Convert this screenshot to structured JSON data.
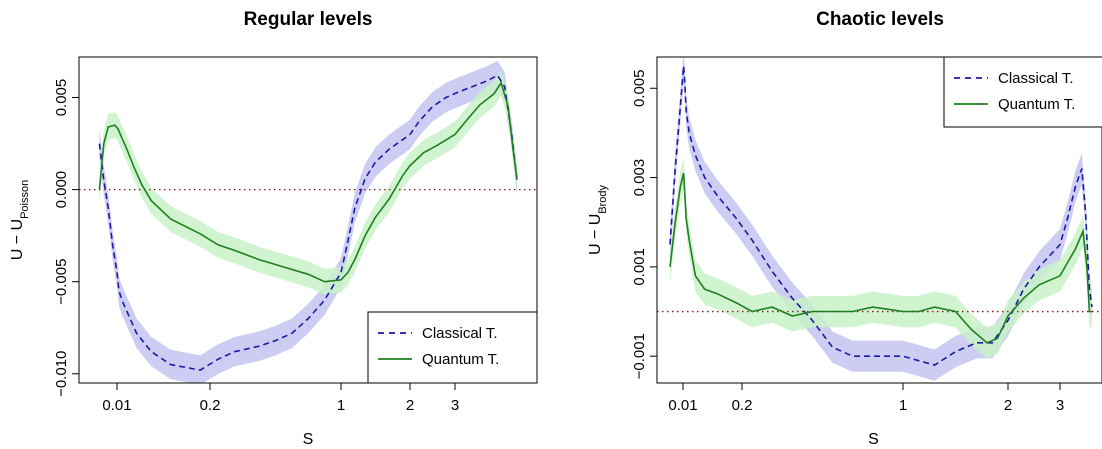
{
  "colors": {
    "classical": "#1a1aa6",
    "classical_band": "#c8c8f3",
    "quantum": "#1f7f1f",
    "quantum_band": "#c8f1c8",
    "reference": "#8b1a1a"
  },
  "chart_data": [
    {
      "type": "line",
      "title": "Regular levels",
      "xlabel": "S",
      "ylabel_main": "U − U",
      "ylabel_sub": "Poisson",
      "x_scale": "custom (nonlinear, as printed ticks)",
      "x_ticks": [
        0.01,
        0.2,
        1,
        2,
        3
      ],
      "x_tick_labels": [
        "0.01",
        "0.2",
        "1",
        "2",
        "3"
      ],
      "y_ticks": [
        -0.01,
        -0.005,
        0.0,
        0.005
      ],
      "y_tick_labels": [
        "−0.010",
        "−0.005",
        "0.000",
        "0.005"
      ],
      "ylim": [
        -0.0105,
        0.0072
      ],
      "reference_line_y": 0.0,
      "legend_position": "bottom-right",
      "series": [
        {
          "name": "Classical T.",
          "style": "dashed",
          "band_halfwidth": 0.0008,
          "points": [
            [
              0.002,
              0.0025
            ],
            [
              0.004,
              0.0005
            ],
            [
              0.006,
              -0.001
            ],
            [
              0.008,
              -0.003
            ],
            [
              0.01,
              -0.0045
            ],
            [
              0.014,
              -0.0055
            ],
            [
              0.02,
              -0.006
            ],
            [
              0.03,
              -0.0066
            ],
            [
              0.05,
              -0.0078
            ],
            [
              0.08,
              -0.0088
            ],
            [
              0.12,
              -0.0095
            ],
            [
              0.18,
              -0.0098
            ],
            [
              0.25,
              -0.0092
            ],
            [
              0.35,
              -0.0088
            ],
            [
              0.5,
              -0.0085
            ],
            [
              0.6,
              -0.0082
            ],
            [
              0.7,
              -0.0078
            ],
            [
              0.8,
              -0.007
            ],
            [
              0.9,
              -0.006
            ],
            [
              1.0,
              -0.0045
            ],
            [
              1.1,
              -0.0028
            ],
            [
              1.2,
              -0.001
            ],
            [
              1.35,
              0.0006
            ],
            [
              1.5,
              0.0015
            ],
            [
              1.7,
              0.0022
            ],
            [
              2.0,
              0.003
            ],
            [
              2.2,
              0.0037
            ],
            [
              2.5,
              0.0045
            ],
            [
              2.8,
              0.005
            ],
            [
              3.1,
              0.0053
            ],
            [
              3.5,
              0.0056
            ],
            [
              3.9,
              0.0059
            ],
            [
              4.2,
              0.0062
            ],
            [
              4.4,
              0.0056
            ],
            [
              4.6,
              0.003
            ],
            [
              4.75,
              0.0005
            ]
          ]
        },
        {
          "name": "Quantum T.",
          "style": "solid",
          "band_halfwidth": 0.0007,
          "points": [
            [
              0.002,
              0.0
            ],
            [
              0.004,
              0.0025
            ],
            [
              0.006,
              0.0034
            ],
            [
              0.009,
              0.0035
            ],
            [
              0.012,
              0.0033
            ],
            [
              0.02,
              0.0028
            ],
            [
              0.03,
              0.0022
            ],
            [
              0.045,
              0.0012
            ],
            [
              0.06,
              0.0003
            ],
            [
              0.08,
              -0.0006
            ],
            [
              0.12,
              -0.0016
            ],
            [
              0.18,
              -0.0024
            ],
            [
              0.25,
              -0.003
            ],
            [
              0.35,
              -0.0033
            ],
            [
              0.5,
              -0.0038
            ],
            [
              0.65,
              -0.0042
            ],
            [
              0.8,
              -0.0046
            ],
            [
              0.9,
              -0.005
            ],
            [
              1.0,
              -0.0049
            ],
            [
              1.1,
              -0.0045
            ],
            [
              1.2,
              -0.0038
            ],
            [
              1.35,
              -0.0025
            ],
            [
              1.5,
              -0.0015
            ],
            [
              1.7,
              -0.0005
            ],
            [
              1.9,
              0.0008
            ],
            [
              2.0,
              0.0013
            ],
            [
              2.3,
              0.002
            ],
            [
              2.6,
              0.0024
            ],
            [
              3.0,
              0.003
            ],
            [
              3.3,
              0.0037
            ],
            [
              3.7,
              0.0046
            ],
            [
              4.1,
              0.0052
            ],
            [
              4.3,
              0.0058
            ],
            [
              4.5,
              0.0045
            ],
            [
              4.65,
              0.002
            ],
            [
              4.75,
              0.0006
            ]
          ]
        }
      ]
    },
    {
      "type": "line",
      "title": "Chaotic levels",
      "xlabel": "S",
      "ylabel_main": "U − U",
      "ylabel_sub": "Brody",
      "x_scale": "custom (nonlinear, as printed ticks)",
      "x_ticks": [
        0.01,
        0.2,
        1,
        2,
        3
      ],
      "x_tick_labels": [
        "0.01",
        "0.2",
        "1",
        "2",
        "3"
      ],
      "y_ticks": [
        -0.001,
        0.001,
        0.003,
        0.005
      ],
      "y_tick_labels": [
        "−0.001",
        "0.001",
        "0.003",
        "0.005"
      ],
      "ylim": [
        -0.0016,
        0.0057
      ],
      "reference_line_y": 0.0,
      "legend_position": "top-right",
      "series": [
        {
          "name": "Classical T.",
          "style": "dashed",
          "band_halfwidth": 0.00035,
          "points": [
            [
              0.0,
              0.0015
            ],
            [
              0.004,
              0.0032
            ],
            [
              0.008,
              0.0046
            ],
            [
              0.012,
              0.0055
            ],
            [
              0.016,
              0.0051
            ],
            [
              0.02,
              0.0045
            ],
            [
              0.03,
              0.004
            ],
            [
              0.05,
              0.0035
            ],
            [
              0.08,
              0.003
            ],
            [
              0.12,
              0.0026
            ],
            [
              0.18,
              0.0021
            ],
            [
              0.25,
              0.0016
            ],
            [
              0.35,
              0.0009
            ],
            [
              0.45,
              0.0003
            ],
            [
              0.55,
              -0.0002
            ],
            [
              0.65,
              -0.0008
            ],
            [
              0.75,
              -0.001
            ],
            [
              0.85,
              -0.001
            ],
            [
              1.0,
              -0.001
            ],
            [
              1.15,
              -0.0011
            ],
            [
              1.3,
              -0.0012
            ],
            [
              1.5,
              -0.0009
            ],
            [
              1.7,
              -0.0007
            ],
            [
              1.85,
              -0.0007
            ],
            [
              2.0,
              -0.0002
            ],
            [
              2.3,
              0.0005
            ],
            [
              2.6,
              0.001
            ],
            [
              3.0,
              0.0015
            ],
            [
              3.3,
              0.0021
            ],
            [
              3.6,
              0.0028
            ],
            [
              3.85,
              0.0032
            ],
            [
              4.0,
              0.0022
            ],
            [
              4.15,
              0.0005
            ],
            [
              4.25,
              0.0001
            ]
          ]
        },
        {
          "name": "Quantum T.",
          "style": "solid",
          "band_halfwidth": 0.00035,
          "points": [
            [
              0.0,
              0.001
            ],
            [
              0.004,
              0.002
            ],
            [
              0.008,
              0.0028
            ],
            [
              0.012,
              0.0031
            ],
            [
              0.016,
              0.0026
            ],
            [
              0.02,
              0.0021
            ],
            [
              0.03,
              0.0016
            ],
            [
              0.05,
              0.0008
            ],
            [
              0.08,
              0.0005
            ],
            [
              0.12,
              0.0004
            ],
            [
              0.18,
              0.0002
            ],
            [
              0.25,
              0.0
            ],
            [
              0.35,
              0.0001
            ],
            [
              0.45,
              -0.0001
            ],
            [
              0.55,
              0.0
            ],
            [
              0.65,
              0.0
            ],
            [
              0.75,
              0.0
            ],
            [
              0.85,
              0.0001
            ],
            [
              1.0,
              0.0
            ],
            [
              1.15,
              0.0
            ],
            [
              1.3,
              0.0001
            ],
            [
              1.5,
              0.0
            ],
            [
              1.65,
              -0.0004
            ],
            [
              1.8,
              -0.0007
            ],
            [
              1.9,
              -0.0006
            ],
            [
              2.0,
              -0.0001
            ],
            [
              2.3,
              0.0003
            ],
            [
              2.6,
              0.0006
            ],
            [
              3.0,
              0.0008
            ],
            [
              3.3,
              0.0011
            ],
            [
              3.6,
              0.0014
            ],
            [
              3.9,
              0.0018
            ],
            [
              4.05,
              0.001
            ],
            [
              4.15,
              0.0
            ],
            [
              4.25,
              0.0
            ]
          ]
        }
      ]
    }
  ]
}
